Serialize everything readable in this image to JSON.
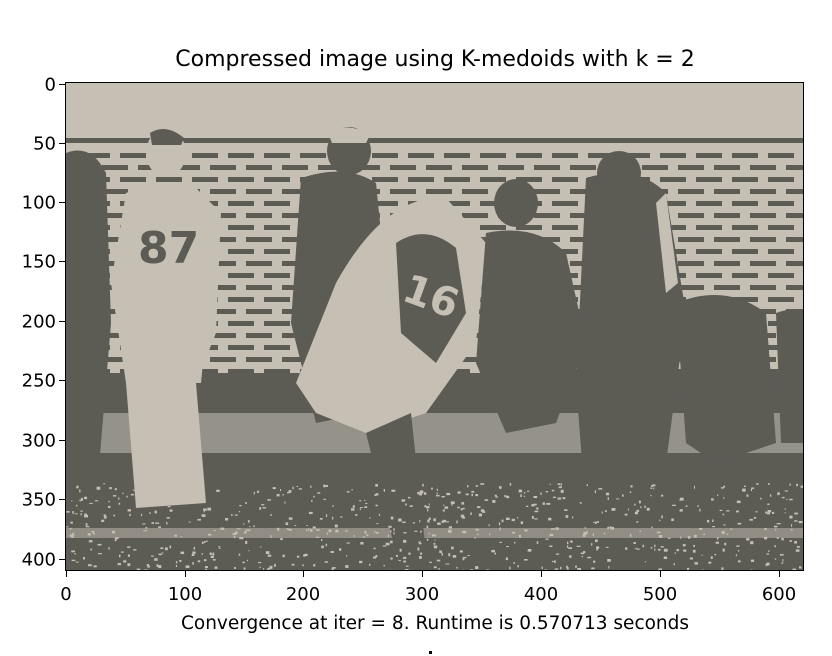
{
  "title": "Compressed image using K-medoids with k = 2",
  "xlabel": "Convergence at iter = 8. Runtime is 0.570713 seconds",
  "axes": {
    "x_ticks": [
      "0",
      "100",
      "200",
      "300",
      "400",
      "500",
      "600"
    ],
    "y_ticks": [
      "0",
      "50",
      "100",
      "150",
      "200",
      "250",
      "300",
      "350",
      "400"
    ],
    "x_range": [
      0,
      624
    ],
    "y_range": [
      0,
      413
    ]
  },
  "image": {
    "subject": "football players on a sideline in front of a brick wall, quantized to two colors",
    "palette": {
      "light": "#c5bfb4",
      "dark": "#5c5b54"
    }
  }
}
